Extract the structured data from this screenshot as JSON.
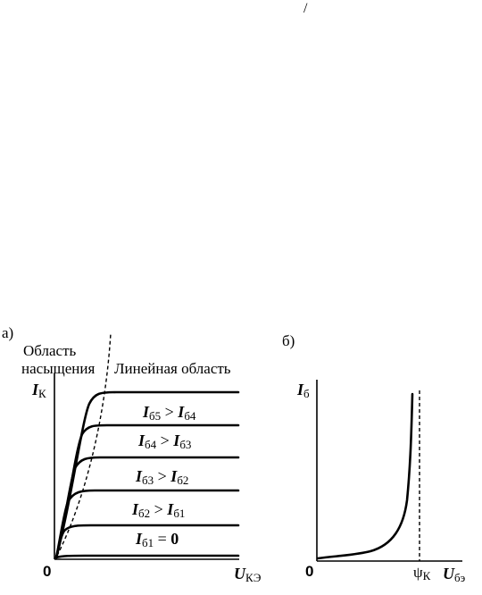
{
  "stray_mark": "/",
  "panel_a": {
    "label": "а)",
    "saturation_region": [
      "Область",
      "насыщения"
    ],
    "linear_region": "Линейная область",
    "y_axis": {
      "symbol": "I",
      "sub": "К"
    },
    "x_axis": {
      "symbol": "U",
      "sub": "КЭ"
    },
    "origin": "0",
    "curve_labels": [
      {
        "a": "I",
        "a_sub": "б5",
        "op": " > ",
        "b": "I",
        "b_sub": "б4"
      },
      {
        "a": "I",
        "a_sub": "б4",
        "op": " > ",
        "b": "I",
        "b_sub": "б3"
      },
      {
        "a": "I",
        "a_sub": "б3",
        "op": " > ",
        "b": "I",
        "b_sub": "б2"
      },
      {
        "a": "I",
        "a_sub": "б2",
        "op": " > ",
        "b": "I",
        "b_sub": "б1"
      },
      {
        "a": "I",
        "a_sub": "б1",
        "op": " = ",
        "b": "0",
        "b_sub": ""
      }
    ]
  },
  "panel_b": {
    "label": "б)",
    "y_axis": {
      "symbol": "I",
      "sub": "б"
    },
    "x_axis": {
      "symbol": "U",
      "sub": "бэ"
    },
    "origin": "0",
    "threshold": {
      "symbol": "ψ",
      "sub": "К"
    }
  }
}
